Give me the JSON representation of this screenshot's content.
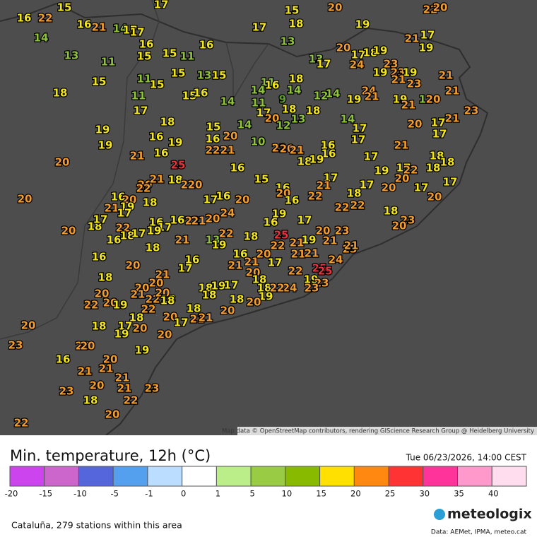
{
  "map": {
    "stations": [
      16,
      22,
      15,
      17,
      15,
      20,
      22,
      20,
      16,
      21,
      14,
      17,
      17,
      17,
      18,
      19,
      14,
      16,
      16,
      13,
      17,
      21,
      19,
      13,
      11,
      15,
      15,
      11,
      13,
      17,
      20,
      17,
      18,
      19,
      23,
      24,
      15,
      11,
      15,
      13,
      15,
      11,
      18,
      19,
      23,
      19,
      21,
      21,
      23,
      18,
      11,
      15,
      15,
      16,
      14,
      14,
      16,
      12,
      14,
      24,
      21,
      19,
      19,
      12,
      20,
      21,
      21,
      17,
      18,
      14,
      11,
      9,
      18,
      17,
      20,
      12,
      13,
      18,
      23,
      19,
      14,
      17,
      20,
      17,
      21,
      17,
      19,
      16,
      19,
      15,
      14,
      20,
      16,
      10,
      17,
      21,
      22,
      21,
      22,
      20,
      21,
      16,
      16,
      20,
      21,
      16,
      17,
      18,
      18,
      18,
      19,
      25,
      16,
      17,
      19,
      17,
      22,
      20,
      18,
      20,
      20,
      21,
      18,
      21,
      20,
      22,
      15,
      16,
      20,
      16,
      22,
      21,
      18,
      17,
      20,
      17,
      20,
      17,
      16,
      20,
      21,
      19,
      18,
      17,
      16,
      20,
      24,
      17,
      22,
      22,
      18,
      20,
      18,
      17,
      22,
      16,
      18,
      17,
      16,
      17,
      19,
      16,
      22,
      21,
      20,
      19,
      16,
      17,
      20,
      23,
      23,
      20,
      16,
      18,
      21,
      13,
      22,
      19,
      18,
      25,
      22,
      21,
      19,
      21,
      23,
      21,
      18,
      20,
      21,
      17,
      16,
      16,
      21,
      21,
      20,
      17,
      21,
      21,
      24,
      20,
      20,
      21,
      22,
      20,
      18,
      18,
      19,
      17,
      20,
      18,
      18,
      22,
      25,
      25,
      19,
      23,
      23,
      24,
      22,
      19,
      20,
      20,
      19,
      22,
      22,
      18,
      18,
      18,
      20,
      18,
      20,
      18,
      20,
      21,
      21,
      17,
      20,
      18,
      17,
      20,
      19,
      20,
      23,
      20,
      20,
      19,
      16,
      20,
      21,
      21,
      21,
      20,
      21,
      23,
      23,
      22,
      18,
      20,
      22
    ],
    "attribution": "Map data © OpenStreetMap contributors, rendering GIScience Research Group @ Heidelberg University"
  },
  "legend": {
    "title": "Min. temperature, 12h (°C)",
    "date": "Tue 06/23/2026, 14:00 CEST",
    "ticks": [
      -20,
      -15,
      -10,
      -5,
      -1,
      0,
      1,
      5,
      10,
      15,
      20,
      25,
      30,
      35,
      40
    ]
  },
  "footer": {
    "stations_text": "Cataluña, 279 stations within this area",
    "brand": "meteologix",
    "sources": "Data: AEMet, IPMA, meteo.cat"
  }
}
